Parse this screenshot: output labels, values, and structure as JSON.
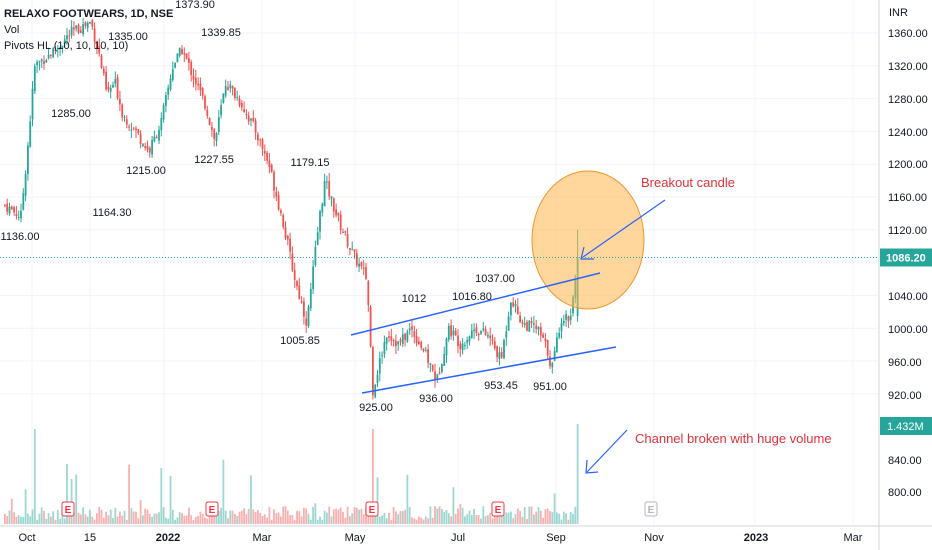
{
  "header": {
    "title": "RELAXO FOOTWEARS, 1D, NSE",
    "indicators": [
      "Vol",
      "Pivots HL (10, 10, 10, 10)"
    ]
  },
  "price_axis": {
    "currency": "INR",
    "ticks": [
      "1360.00",
      "1320.00",
      "1280.00",
      "1240.00",
      "1200.00",
      "1160.00",
      "1120.00",
      "1040.00",
      "1000.00",
      "960.00",
      "920.00",
      "840.00",
      "800.00"
    ],
    "current_price": "1086.20",
    "current_volume": "1.432M"
  },
  "time_axis": {
    "labels": [
      "Oct",
      "15",
      "2022",
      "Mar",
      "May",
      "Jul",
      "Sep",
      "Nov",
      "2023",
      "Mar"
    ]
  },
  "pivots": [
    "1373.90",
    "1335.00",
    "1339.85",
    "1285.00",
    "1215.00",
    "1227.55",
    "1164.30",
    "1179.15",
    "1136.00",
    "1005.85",
    "1012",
    "1016.80",
    "1037.00",
    "925.00",
    "936.00",
    "953.45",
    "951.00"
  ],
  "annotations": {
    "breakout_note": "Breakout candle",
    "volume_note": "Channel broken with huge volume"
  },
  "earnings_marker": "E",
  "colors": {
    "up": "#26a69a",
    "down": "#ef5350",
    "trendline": "#2962ff",
    "note": "#e0313b",
    "circle_fill": "#ffb74d",
    "price_label_bg": "#26a69a"
  },
  "chart_data": {
    "type": "candlestick",
    "title": "RELAXO FOOTWEARS, 1D, NSE",
    "ylabel": "INR",
    "ylim": [
      780,
      1390
    ],
    "approx_close_path": [
      {
        "date": "2021-10",
        "close": 1140
      },
      {
        "date": "2021-11",
        "close": 1373.9
      },
      {
        "date": "2021-11-late",
        "close": 1285
      },
      {
        "date": "2021-12",
        "close": 1215
      },
      {
        "date": "2022-01",
        "close": 1339.85
      },
      {
        "date": "2022-02",
        "close": 1227.55
      },
      {
        "date": "2022-03",
        "close": 1179.15
      },
      {
        "date": "2022-04",
        "close": 1005.85
      },
      {
        "date": "2022-05",
        "close": 925
      },
      {
        "date": "2022-06",
        "close": 936
      },
      {
        "date": "2022-07",
        "close": 1037
      },
      {
        "date": "2022-08",
        "close": 951
      },
      {
        "date": "2022-09",
        "close": 1086.2
      }
    ],
    "last_volume": "1.432M"
  }
}
